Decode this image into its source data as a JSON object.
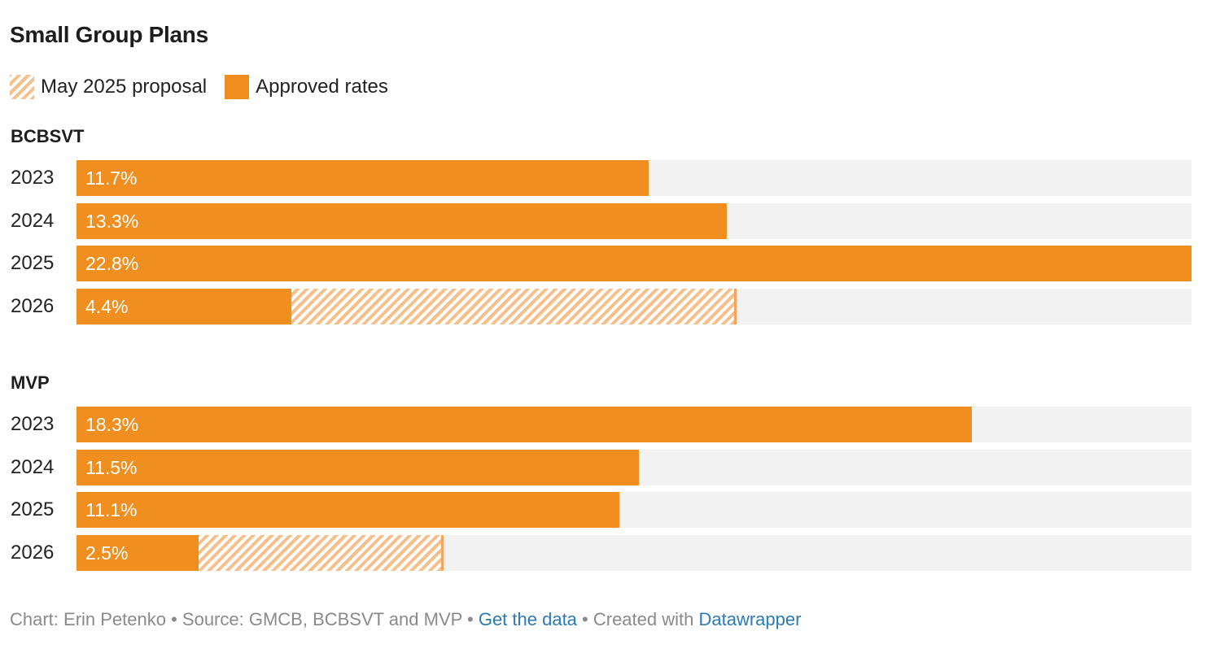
{
  "chart_data": {
    "type": "bar",
    "title": "Small Group Plans",
    "legend": [
      {
        "label": "May 2025 proposal",
        "style": "hatched",
        "color": "#f7bf8a"
      },
      {
        "label": "Approved rates",
        "style": "solid",
        "color": "#f08f1f"
      }
    ],
    "xlim": [
      0,
      22.8
    ],
    "groups": [
      {
        "name": "BCBSVT",
        "rows": [
          {
            "year": "2023",
            "approved": 11.7,
            "proposal": 11.7,
            "label": "11.7%"
          },
          {
            "year": "2024",
            "approved": 13.3,
            "proposal": 13.3,
            "label": "13.3%"
          },
          {
            "year": "2025",
            "approved": 22.8,
            "proposal": 22.8,
            "label": "22.8%"
          },
          {
            "year": "2026",
            "approved": 4.4,
            "proposal": 13.5,
            "label": "4.4%"
          }
        ]
      },
      {
        "name": "MVP",
        "rows": [
          {
            "year": "2023",
            "approved": 18.3,
            "proposal": 18.3,
            "label": "18.3%"
          },
          {
            "year": "2024",
            "approved": 11.5,
            "proposal": 11.5,
            "label": "11.5%"
          },
          {
            "year": "2025",
            "approved": 11.1,
            "proposal": 11.1,
            "label": "11.1%"
          },
          {
            "year": "2026",
            "approved": 2.5,
            "proposal": 7.5,
            "label": "2.5%"
          }
        ]
      }
    ]
  },
  "footer": {
    "prefix": "Chart: Erin Petenko • Source: GMCB, BCBSVT and MVP • ",
    "data_link": "Get the data",
    "middle": " • Created with ",
    "tool_link": "Datawrapper"
  },
  "colors": {
    "approved": "#f08f1f",
    "proposal_hatch": "#f7bf8a",
    "track": "#f2f2f2",
    "link": "#2a7ab8"
  }
}
